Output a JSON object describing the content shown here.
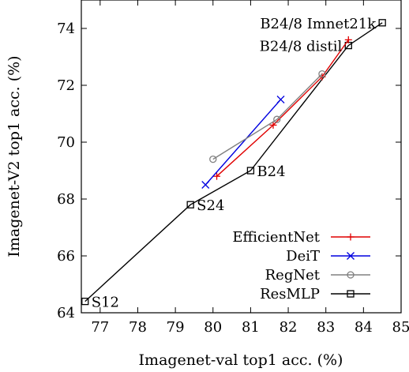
{
  "chart_data": {
    "type": "line",
    "xlabel": "Imagenet-val top1 acc. (%)",
    "ylabel": "Imagenet-V2 top1 acc. (%)",
    "xlim": [
      76.5,
      85
    ],
    "ylim": [
      64,
      75
    ],
    "xticks": [
      77,
      78,
      79,
      80,
      81,
      82,
      83,
      84,
      85
    ],
    "yticks": [
      64,
      66,
      68,
      70,
      72,
      74
    ],
    "grid": false,
    "legend_position": "bottom-right",
    "series": [
      {
        "name": "EfficientNet",
        "color": "#e00000",
        "marker": "plus",
        "x": [
          80.1,
          81.6,
          82.9,
          83.6
        ],
        "y": [
          68.8,
          70.6,
          72.3,
          73.6
        ]
      },
      {
        "name": "DeiT",
        "color": "#0000e0",
        "marker": "x",
        "x": [
          79.8,
          81.8
        ],
        "y": [
          68.5,
          71.5
        ]
      },
      {
        "name": "RegNet",
        "color": "#808080",
        "marker": "circle",
        "x": [
          80.0,
          81.7,
          82.9
        ],
        "y": [
          69.4,
          70.8,
          72.4
        ]
      },
      {
        "name": "ResMLP",
        "color": "#000000",
        "marker": "square",
        "x": [
          76.6,
          79.4,
          81.0,
          83.6,
          84.5
        ],
        "y": [
          64.4,
          67.8,
          69.0,
          73.4,
          74.2
        ]
      }
    ],
    "annotations": [
      {
        "text": "S12",
        "x": 76.6,
        "y": 64.4,
        "anchor": "right"
      },
      {
        "text": "S24",
        "x": 79.4,
        "y": 67.8,
        "anchor": "right"
      },
      {
        "text": "B24",
        "x": 81.0,
        "y": 69.0,
        "anchor": "right"
      },
      {
        "text": "B24/8 distil",
        "x": 83.6,
        "y": 73.4,
        "anchor": "left"
      },
      {
        "text": "B24/8 Imnet21k",
        "x": 84.5,
        "y": 74.2,
        "anchor": "left"
      }
    ]
  }
}
